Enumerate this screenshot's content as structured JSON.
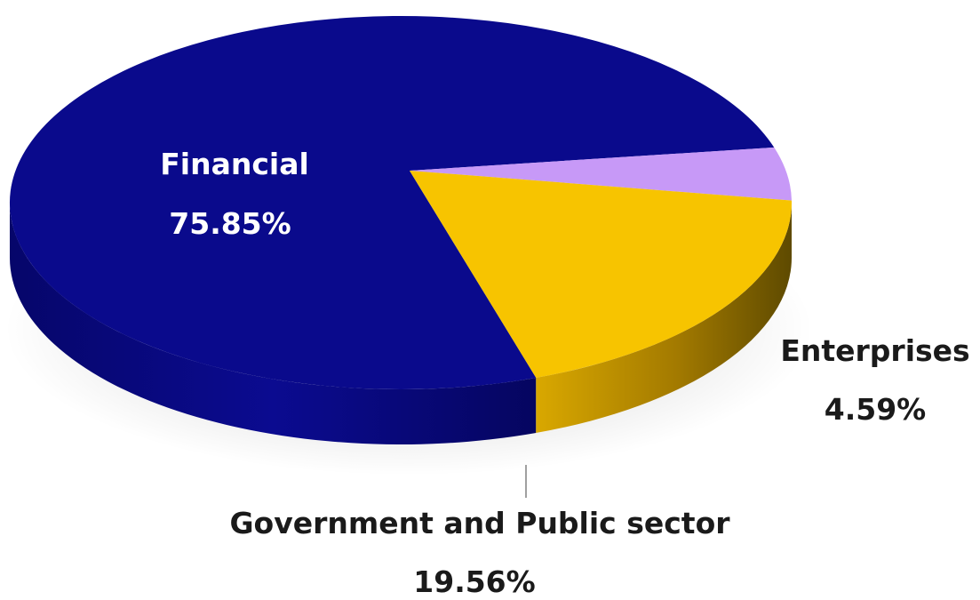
{
  "chart_data": {
    "type": "pie",
    "title": "",
    "slices": [
      {
        "label": "Financial",
        "value": 75.85,
        "value_label": "75.85%",
        "color": "#0a0a8c",
        "label_color": "#ffffff"
      },
      {
        "label": "Enterprises",
        "value": 4.59,
        "value_label": "4.59%",
        "color": "#c799f7",
        "label_color": "#1a1a1a"
      },
      {
        "label": "Government and Public sector",
        "value": 19.56,
        "value_label": "19.56%",
        "color": "#f7c400",
        "label_color": "#1a1a1a"
      }
    ],
    "style": "3d-tilted",
    "legend": "none"
  }
}
